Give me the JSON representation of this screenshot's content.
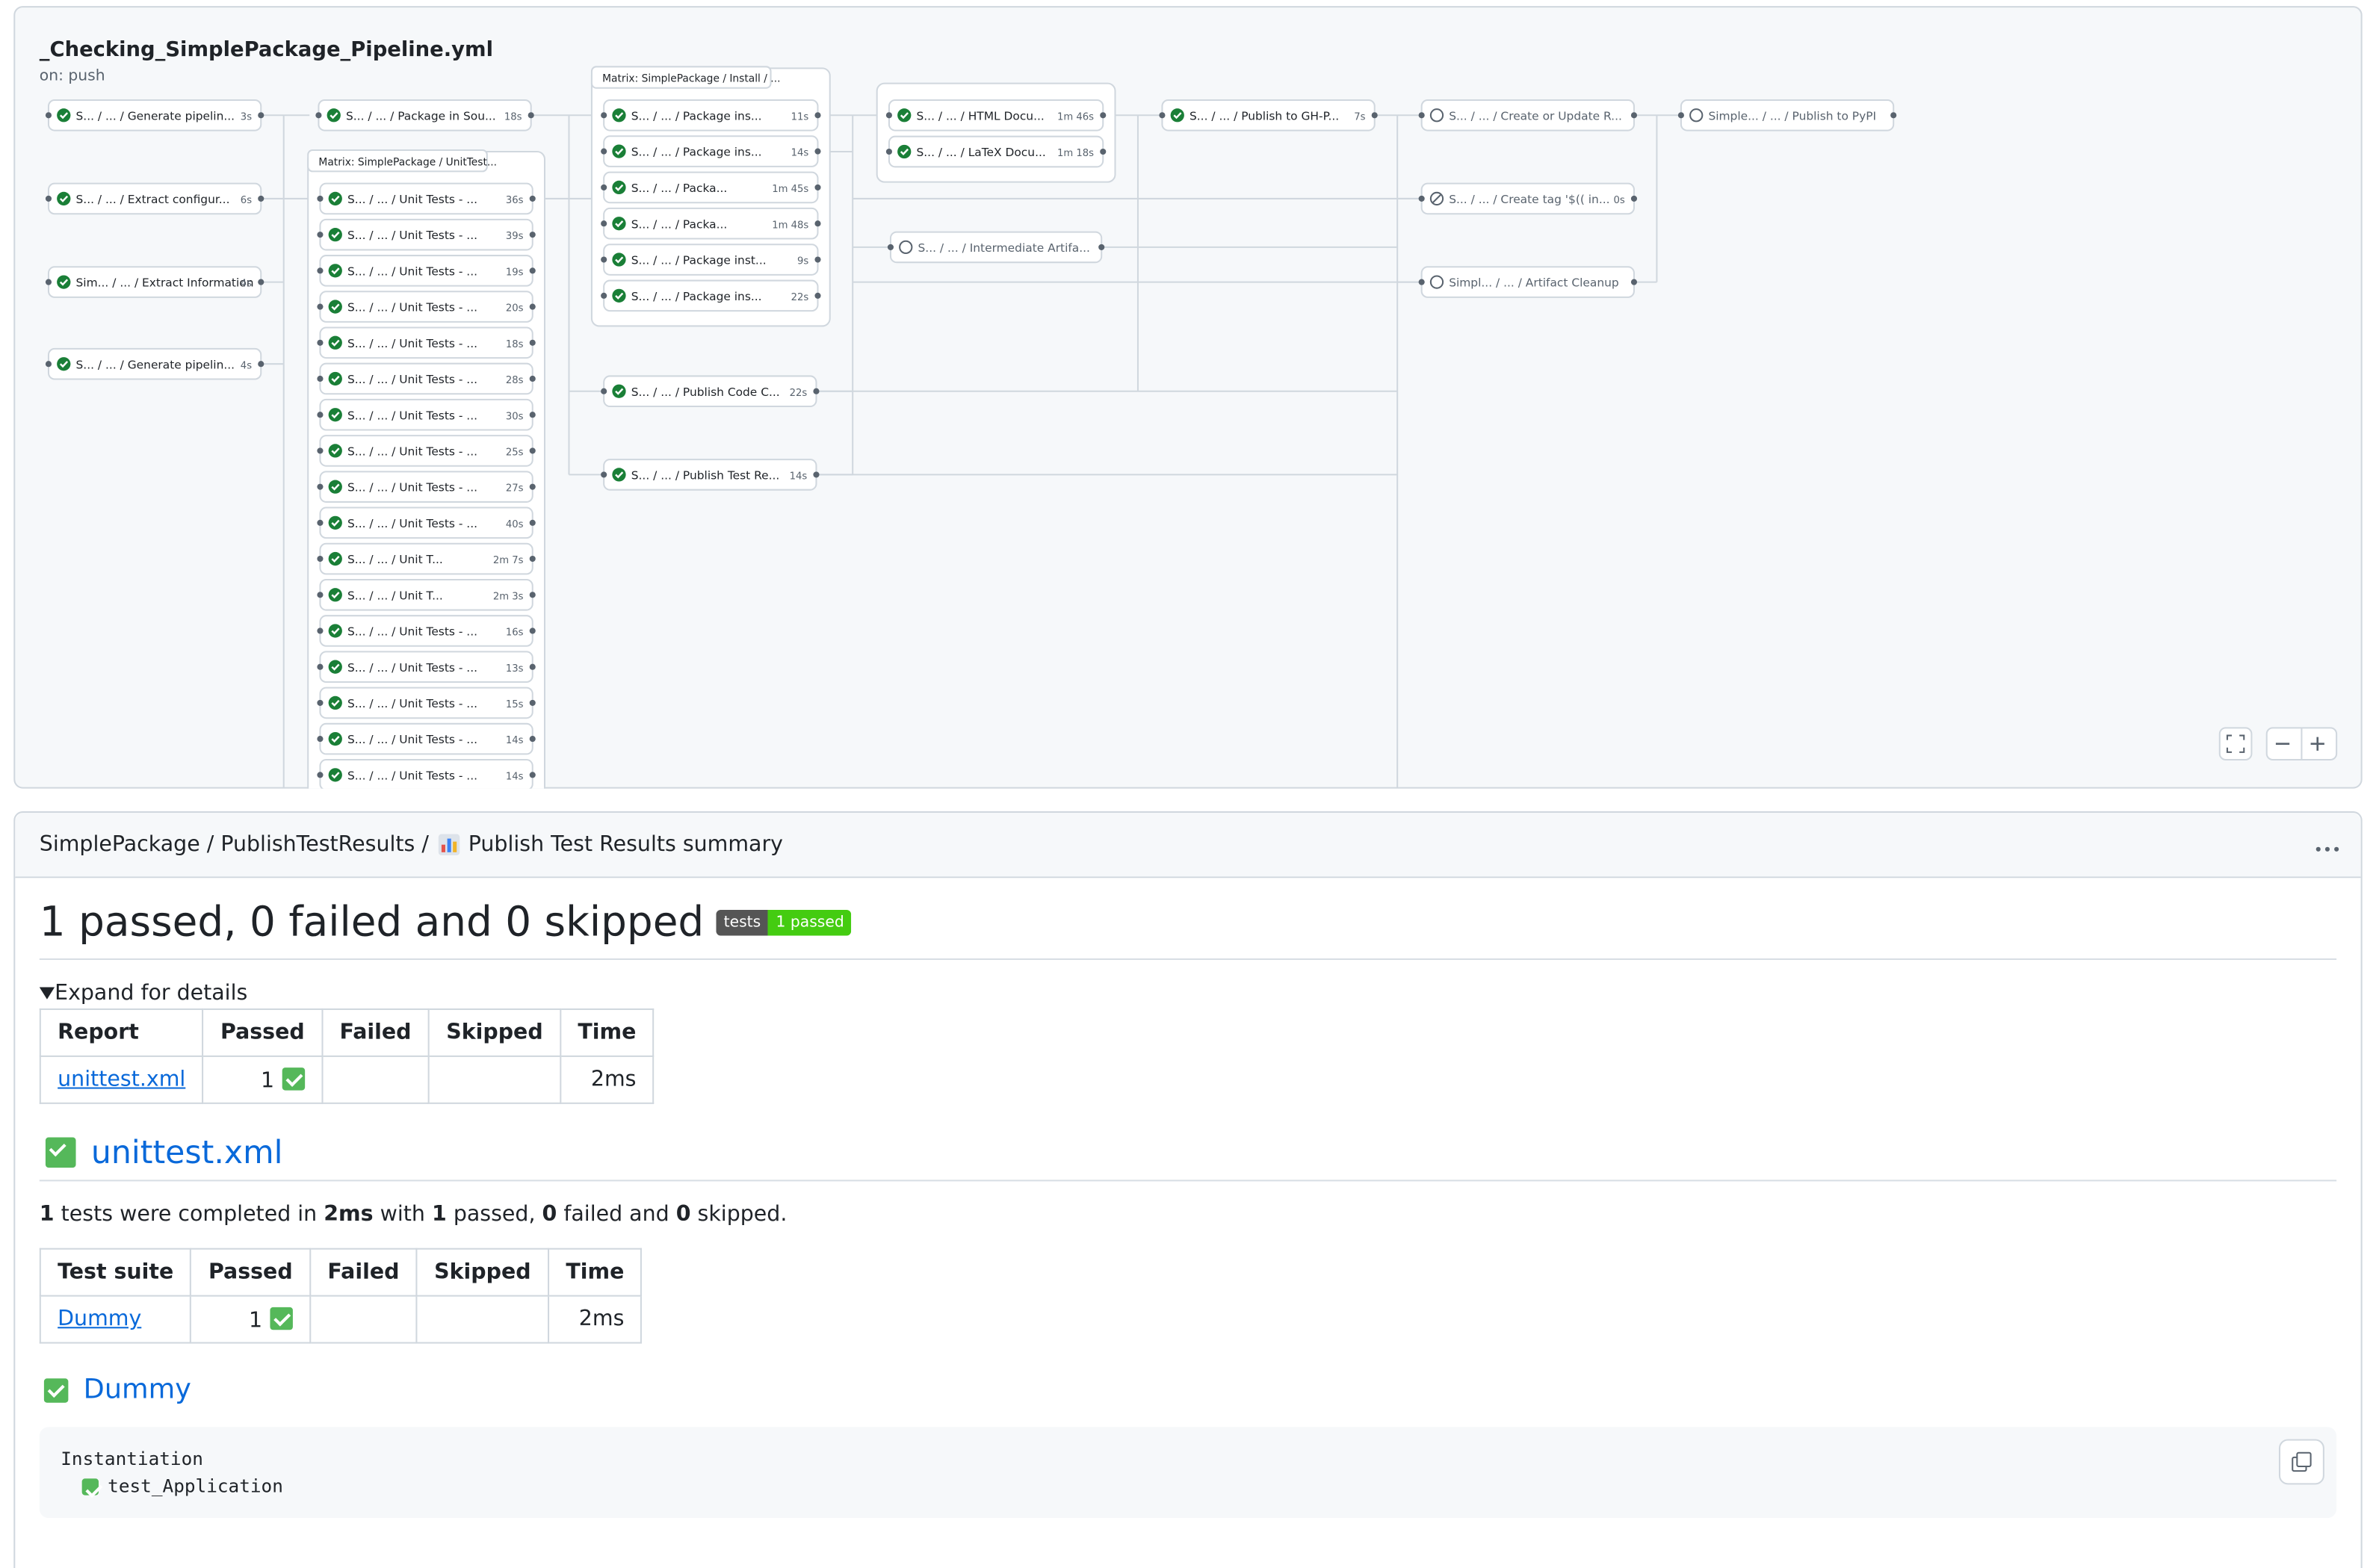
{
  "graph": {
    "title": "_Checking_SimplePackage_Pipeline.yml",
    "trigger": "on: push",
    "jobs": [
      {
        "label": "S... / ... / Generate pipelin...",
        "duration": "3s",
        "status": "success"
      },
      {
        "label": "S... / ... / Extract configur...",
        "duration": "6s",
        "status": "success"
      },
      {
        "label": "Sim... / ... / Extract Information",
        "duration": "4s",
        "status": "success"
      },
      {
        "label": "S... / ... / Generate pipelin...",
        "duration": "4s",
        "status": "success"
      },
      {
        "label": "S... / ... / Package in Sou...",
        "duration": "18s",
        "status": "success"
      },
      {
        "label": "S... / ... / Publish Code C...",
        "duration": "22s",
        "status": "success"
      },
      {
        "label": "S... / ... / Publish Test Re...",
        "duration": "14s",
        "status": "success"
      },
      {
        "label": "S... / ... / Intermediate Artifa...",
        "duration": null,
        "status": "pending"
      },
      {
        "label": "S... / ... / Publish to GH-P...",
        "duration": "7s",
        "status": "success"
      },
      {
        "label": "S... / ... / Create or Update R...",
        "duration": null,
        "status": "pending"
      },
      {
        "label": "S... / ... / Create tag '$(( in...",
        "duration": "0s",
        "status": "skipped"
      },
      {
        "label": "Simpl... / ... / Artifact Cleanup",
        "duration": null,
        "status": "pending"
      },
      {
        "label": "Simple... / ... / Publish to PyPI",
        "duration": null,
        "status": "pending"
      }
    ],
    "matrices": [
      {
        "title": "Matrix: SimplePackage / UnitTest...",
        "jobs": [
          {
            "label": "S... / ... / Unit Tests - ...",
            "duration": "36s"
          },
          {
            "label": "S... / ... / Unit Tests - ...",
            "duration": "39s"
          },
          {
            "label": "S... / ... / Unit Tests - ...",
            "duration": "19s"
          },
          {
            "label": "S... / ... / Unit Tests - ...",
            "duration": "20s"
          },
          {
            "label": "S... / ... / Unit Tests - ...",
            "duration": "18s"
          },
          {
            "label": "S... / ... / Unit Tests - ...",
            "duration": "28s"
          },
          {
            "label": "S... / ... / Unit Tests - ...",
            "duration": "30s"
          },
          {
            "label": "S... / ... / Unit Tests - ...",
            "duration": "25s"
          },
          {
            "label": "S... / ... / Unit Tests - ...",
            "duration": "27s"
          },
          {
            "label": "S... / ... / Unit Tests - ...",
            "duration": "40s"
          },
          {
            "label": "S... / ... / Unit T...",
            "duration": "2m 7s"
          },
          {
            "label": "S... / ... / Unit T...",
            "duration": "2m 3s"
          },
          {
            "label": "S... / ... / Unit Tests - ...",
            "duration": "16s"
          },
          {
            "label": "S... / ... / Unit Tests - ...",
            "duration": "13s"
          },
          {
            "label": "S... / ... / Unit Tests - ...",
            "duration": "15s"
          },
          {
            "label": "S... / ... / Unit Tests - ...",
            "duration": "14s"
          },
          {
            "label": "S... / ... / Unit Tests - ...",
            "duration": "14s"
          }
        ]
      },
      {
        "title": "Matrix: SimplePackage / Install / ...",
        "jobs": [
          {
            "label": "S... / ... / Package ins...",
            "duration": "11s"
          },
          {
            "label": "S... / ... / Package ins...",
            "duration": "14s"
          },
          {
            "label": "S... / ... / Packa...",
            "duration": "1m 45s"
          },
          {
            "label": "S... / ... / Packa...",
            "duration": "1m 48s"
          },
          {
            "label": "S... / ... / Package inst...",
            "duration": "9s"
          },
          {
            "label": "S... / ... / Package ins...",
            "duration": "22s"
          }
        ]
      },
      {
        "jobs": [
          {
            "label": "S... / ... / HTML Docu...",
            "duration": "1m 46s"
          },
          {
            "label": "S... / ... / LaTeX Docu...",
            "duration": "1m 18s"
          }
        ]
      }
    ]
  },
  "summary": {
    "breadcrumb": [
      "SimplePackage / PublishTestResults /",
      "Publish Test Results summary"
    ],
    "heading": "1 passed, 0 failed and 0 skipped",
    "badge": [
      "tests",
      "1 passed"
    ],
    "details": "Expand for details",
    "report_table": {
      "headers": [
        "Report",
        "Passed",
        "Failed",
        "Skipped",
        "Time"
      ],
      "rows": [
        [
          "unittest.xml",
          1,
          null,
          null,
          "2ms"
        ]
      ]
    },
    "report_heading": "unittest.xml",
    "sentence": [
      "1",
      " tests were completed in ",
      "2ms",
      " with ",
      "1",
      " passed, ",
      "0",
      " failed and ",
      "0",
      " skipped."
    ],
    "suite_table": {
      "headers": [
        "Test suite",
        "Passed",
        "Failed",
        "Skipped",
        "Time"
      ],
      "rows": [
        [
          "Dummy",
          1,
          null,
          null,
          "2ms"
        ]
      ]
    },
    "suite_heading": "Dummy",
    "code": [
      "Instantiation",
      "test_Application"
    ]
  }
}
